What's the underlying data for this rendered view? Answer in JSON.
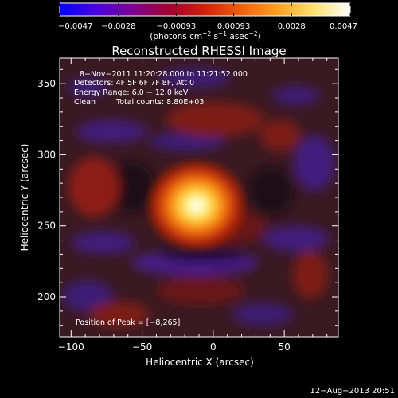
{
  "chart_data": {
    "type": "heatmap",
    "title": "Reconstructed RHESSI Image",
    "xlabel": "Heliocentric X (arcsec)",
    "ylabel": "Heliocentric Y (arcsec)",
    "xlim": [
      -108,
      88
    ],
    "ylim": [
      172,
      368
    ],
    "xticks": [
      -100,
      -50,
      0,
      50
    ],
    "xticklabels": [
      "−100",
      "−50",
      "0",
      "50"
    ],
    "yticks": [
      200,
      250,
      300,
      350
    ],
    "yticklabels": [
      "200",
      "250",
      "300",
      "350"
    ],
    "colorbar": {
      "ticks": [
        -0.0047,
        -0.0028,
        -0.00093,
        0.00093,
        0.0028,
        0.0047
      ],
      "ticklabels": [
        "−0.0047",
        "−0.0028",
        "−0.00093",
        "0.00093",
        "0.0028",
        "0.0047"
      ],
      "unit_main": "(photons cm",
      "unit_sup1": "−2",
      "unit_mid": " s",
      "unit_sup2": "−1",
      "unit_mid2": " asec",
      "unit_sup3": "−2",
      "unit_end": ")",
      "colors": [
        "#0000ff",
        "#4800e0",
        "#7a0090",
        "#a00030",
        "#d0200a",
        "#f06010",
        "#ffa020",
        "#ffe070",
        "#ffffff"
      ]
    },
    "peak": [
      -8,
      265
    ],
    "grid": false
  },
  "annotation": {
    "time_range": "8−Nov−2011 11:20:28.000 to 11:21:52.000",
    "detectors": "Detectors: 4F 5F 6F 7F 8F, Att 0",
    "energy": "Energy Range: 6.0 − 12.0 keV",
    "method": "Clean",
    "counts": "Total counts: 8.80E+03",
    "peak_label": "Position of Peak = [−8,265]"
  },
  "footer": {
    "timestamp": "12−Aug−2013 20:51"
  }
}
